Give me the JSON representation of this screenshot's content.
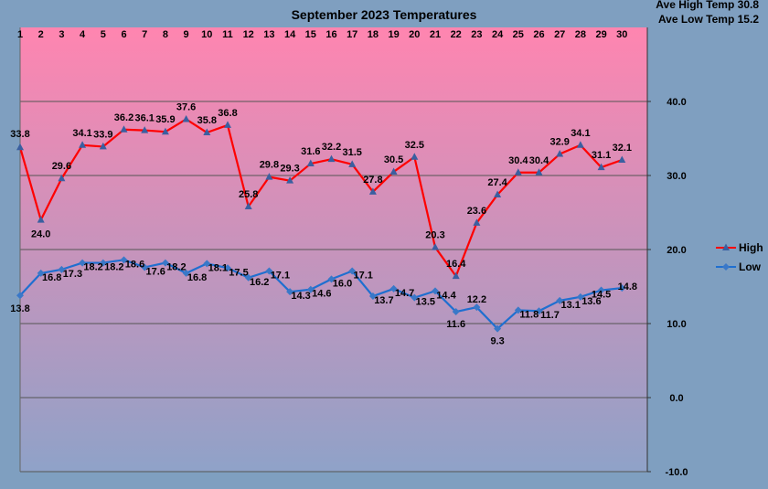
{
  "chart_data": {
    "type": "line",
    "title": "September 2023 Temperatures",
    "annotations": [
      "Ave High Temp 30.8",
      "Ave Low Temp 15.2"
    ],
    "x": [
      1,
      2,
      3,
      4,
      5,
      6,
      7,
      8,
      9,
      10,
      11,
      12,
      13,
      14,
      15,
      16,
      17,
      18,
      19,
      20,
      21,
      22,
      23,
      24,
      25,
      26,
      27,
      28,
      29,
      30
    ],
    "x_tick_labels": [
      "1",
      "2",
      "3",
      "4",
      "5",
      "6",
      "7",
      "8",
      "9",
      "10",
      "11",
      "12",
      "13",
      "14",
      "15",
      "16",
      "17",
      "18",
      "19",
      "20",
      "21",
      "22",
      "23",
      "24",
      "25",
      "26",
      "27",
      "28",
      "29",
      "30"
    ],
    "x_axis_position": "top",
    "y_axis_position": "right",
    "ylim": [
      -10,
      50
    ],
    "y_tick_labels": [
      "-10.0",
      "0.0",
      "10.0",
      "20.0",
      "30.0",
      "40.0"
    ],
    "y_ticks": [
      -10,
      0,
      10,
      20,
      30,
      40
    ],
    "grid": true,
    "legend_position": "right",
    "series": [
      {
        "name": "High",
        "color": "#ff0000",
        "marker_color": "#3a5fa0",
        "marker": "triangle",
        "values": [
          33.8,
          24.0,
          29.6,
          34.1,
          33.9,
          36.2,
          36.1,
          35.9,
          37.6,
          35.8,
          36.8,
          25.8,
          29.8,
          29.3,
          31.6,
          32.2,
          31.5,
          27.8,
          30.5,
          32.5,
          20.3,
          16.4,
          23.6,
          27.4,
          30.4,
          30.4,
          32.9,
          34.1,
          31.1,
          32.1
        ],
        "labels": [
          "33.8",
          "24.0",
          "29.6",
          "34.1",
          "33.9",
          "36.2",
          "36.1",
          "35.9",
          "37.6",
          "35.8",
          "36.8",
          "25.8",
          "29.8",
          "29.3",
          "31.6",
          "32.2",
          "31.5",
          "27.8",
          "30.5",
          "32.5",
          "20.3",
          "16.4",
          "23.6",
          "27.4",
          "30.4",
          "30.4",
          "32.9",
          "34.1",
          "31.1",
          "32.1"
        ]
      },
      {
        "name": "Low",
        "color": "#1f6fd0",
        "marker_color": "#3a78c8",
        "marker": "diamond",
        "values": [
          13.8,
          16.8,
          17.3,
          18.2,
          18.2,
          18.6,
          17.6,
          18.2,
          16.8,
          18.1,
          17.5,
          16.2,
          17.1,
          14.3,
          14.6,
          16.0,
          17.1,
          13.7,
          14.7,
          13.5,
          14.4,
          11.6,
          12.2,
          9.3,
          11.8,
          11.7,
          13.1,
          13.6,
          14.5,
          14.8
        ],
        "labels": [
          "13.8",
          "16.8",
          "17.3",
          "18.2",
          "18.2",
          "18.6",
          "17.6",
          "18.2",
          "16.8",
          "18.1",
          "17.5",
          "16.2",
          "17.1",
          "14.3",
          "14.6",
          "16.0",
          "17.1",
          "13.7",
          "14.7",
          "13.5",
          "14.4",
          "11.6",
          "12.2",
          "9.3",
          "11.8",
          "11.7",
          "13.1",
          "13.6",
          "14.5",
          "14.8"
        ]
      }
    ],
    "background_gradient": [
      "#ff85b0",
      "#8fa2c8"
    ],
    "page_background": "#7f9fc0"
  }
}
